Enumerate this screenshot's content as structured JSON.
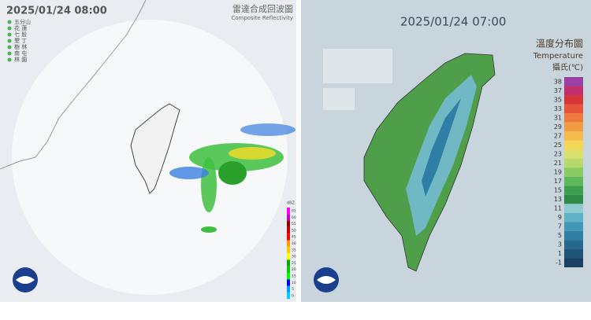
{
  "left_panel": {
    "timestamp": "2025/01/24 08:00",
    "title": "雷達合成回波圖",
    "subtitle": "Composite Reflectivity",
    "stations": [
      "五分山",
      "花 蓮",
      "七 股",
      "墾 丁",
      "樹 林",
      "南 屯",
      "林 園"
    ],
    "legend": {
      "unit": "dBZ",
      "labels": [
        65,
        60,
        55,
        50,
        45,
        40,
        35,
        30,
        25,
        20,
        15,
        10,
        5,
        0
      ],
      "colors": [
        "#ff00ff",
        "#cc00cc",
        "#990000",
        "#cc0000",
        "#ff0000",
        "#ff9900",
        "#ffcc00",
        "#ffff00",
        "#00aa00",
        "#00cc00",
        "#00ff00",
        "#0000ff",
        "#0099ff",
        "#00ccff"
      ]
    }
  },
  "right_panel": {
    "timestamp": "2025/01/24 07:00",
    "title": "溫度分布圖",
    "subtitle": "Temperature",
    "unit": "攝氏(℃)",
    "legend": {
      "labels": [
        38,
        37,
        35,
        33,
        31,
        29,
        27,
        25,
        23,
        21,
        19,
        17,
        15,
        13,
        11,
        9,
        7,
        5,
        3,
        1,
        -1
      ],
      "colors": [
        "#9a3fa6",
        "#c0306a",
        "#d8353a",
        "#e5533a",
        "#ec7a3c",
        "#f19c42",
        "#f5bb4c",
        "#f3d656",
        "#dbe06a",
        "#b8d86a",
        "#8ccb63",
        "#5fb85a",
        "#3c9f4d",
        "#2f8a48",
        "#8fcbd0",
        "#5fb3c4",
        "#3f98b6",
        "#2f7ea5",
        "#27688f",
        "#205378",
        "#1a4062"
      ]
    }
  }
}
